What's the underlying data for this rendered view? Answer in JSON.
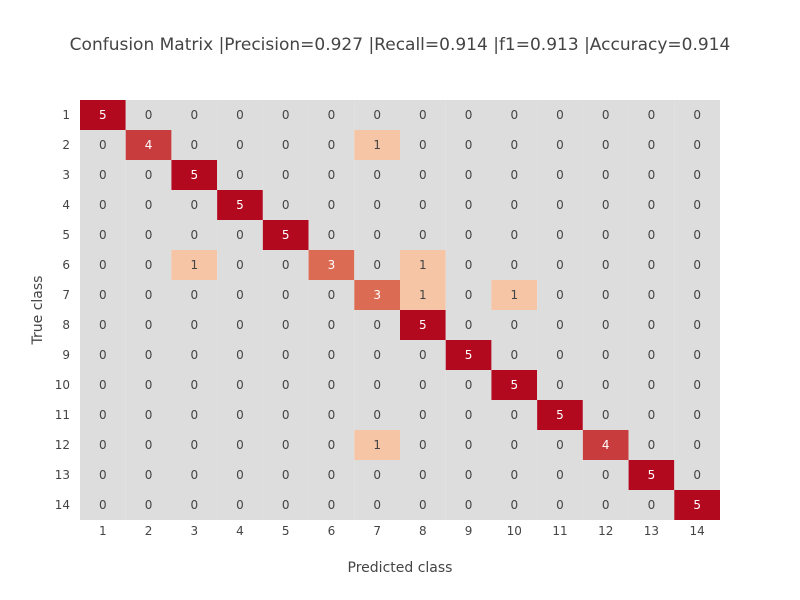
{
  "chart_data": {
    "type": "heatmap",
    "title": "Confusion Matrix |Precision=0.927 |Recall=0.914 |f1=0.913 |Accuracy=0.914",
    "xlabel": "Predicted class",
    "ylabel": "True class",
    "x_categories": [
      "1",
      "2",
      "3",
      "4",
      "5",
      "6",
      "7",
      "8",
      "9",
      "10",
      "11",
      "12",
      "13",
      "14"
    ],
    "y_categories": [
      "1",
      "2",
      "3",
      "4",
      "5",
      "6",
      "7",
      "8",
      "9",
      "10",
      "11",
      "12",
      "13",
      "14"
    ],
    "z": [
      [
        5,
        0,
        0,
        0,
        0,
        0,
        0,
        0,
        0,
        0,
        0,
        0,
        0,
        0
      ],
      [
        0,
        4,
        0,
        0,
        0,
        0,
        1,
        0,
        0,
        0,
        0,
        0,
        0,
        0
      ],
      [
        0,
        0,
        5,
        0,
        0,
        0,
        0,
        0,
        0,
        0,
        0,
        0,
        0,
        0
      ],
      [
        0,
        0,
        0,
        5,
        0,
        0,
        0,
        0,
        0,
        0,
        0,
        0,
        0,
        0
      ],
      [
        0,
        0,
        0,
        0,
        5,
        0,
        0,
        0,
        0,
        0,
        0,
        0,
        0,
        0
      ],
      [
        0,
        0,
        1,
        0,
        0,
        3,
        0,
        1,
        0,
        0,
        0,
        0,
        0,
        0
      ],
      [
        0,
        0,
        0,
        0,
        0,
        0,
        3,
        1,
        0,
        1,
        0,
        0,
        0,
        0
      ],
      [
        0,
        0,
        0,
        0,
        0,
        0,
        0,
        5,
        0,
        0,
        0,
        0,
        0,
        0
      ],
      [
        0,
        0,
        0,
        0,
        0,
        0,
        0,
        0,
        5,
        0,
        0,
        0,
        0,
        0
      ],
      [
        0,
        0,
        0,
        0,
        0,
        0,
        0,
        0,
        0,
        5,
        0,
        0,
        0,
        0
      ],
      [
        0,
        0,
        0,
        0,
        0,
        0,
        0,
        0,
        0,
        0,
        5,
        0,
        0,
        0
      ],
      [
        0,
        0,
        0,
        0,
        0,
        0,
        1,
        0,
        0,
        0,
        0,
        4,
        0,
        0
      ],
      [
        0,
        0,
        0,
        0,
        0,
        0,
        0,
        0,
        0,
        0,
        0,
        0,
        5,
        0
      ],
      [
        0,
        0,
        0,
        0,
        0,
        0,
        0,
        0,
        0,
        0,
        0,
        0,
        0,
        5
      ]
    ],
    "zlim": [
      0,
      5
    ],
    "colorscale": {
      "0": "#dddddd",
      "1": "#f6c5a5",
      "3": "#dc6b53",
      "4": "#c83c3e",
      "5": "#b2091f"
    },
    "label_color_dark": "#444444",
    "label_color_light": "#ffffff",
    "legend": "none"
  }
}
